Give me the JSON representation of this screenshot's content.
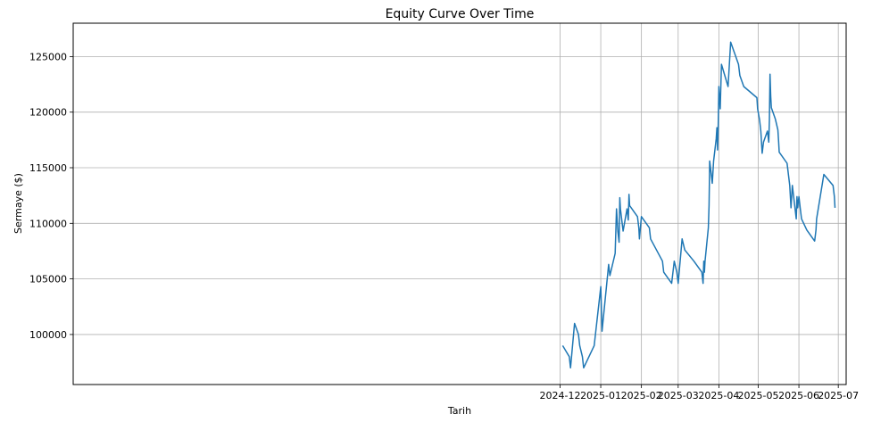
{
  "chart_data": {
    "type": "line",
    "title": "Equity Curve Over Time",
    "xlabel": "Tarih",
    "ylabel": "Sermaye ($)",
    "grid": true,
    "line_color": "#1f77b4",
    "xlim": [
      "2023-11-26",
      "2025-07-07"
    ],
    "ylim": [
      95500,
      128000
    ],
    "x_ticks": [
      {
        "date": "2024-12-01",
        "label": "2024-12"
      },
      {
        "date": "2025-01-01",
        "label": "2025-01"
      },
      {
        "date": "2025-02-01",
        "label": "2025-02"
      },
      {
        "date": "2025-03-01",
        "label": "2025-03"
      },
      {
        "date": "2025-04-01",
        "label": "2025-04"
      },
      {
        "date": "2025-05-01",
        "label": "2025-05"
      },
      {
        "date": "2025-06-01",
        "label": "2025-06"
      },
      {
        "date": "2025-07-01",
        "label": "2025-07"
      }
    ],
    "y_ticks": [
      {
        "value": 100000,
        "label": "100000"
      },
      {
        "value": 105000,
        "label": "105000"
      },
      {
        "value": 110000,
        "label": "110000"
      },
      {
        "value": 115000,
        "label": "115000"
      },
      {
        "value": 120000,
        "label": "120000"
      },
      {
        "value": 125000,
        "label": "125000"
      }
    ],
    "series": [
      {
        "x": [
          "2024-12-03",
          "2024-12-08",
          "2024-12-09",
          "2024-12-12",
          "2024-12-15",
          "2024-12-16",
          "2024-12-18",
          "2024-12-19",
          "2024-12-27",
          "2025-01-01",
          "2025-01-02",
          "2025-01-07",
          "2025-01-08",
          "2025-01-12",
          "2025-01-13",
          "2025-01-14",
          "2025-01-15",
          "2025-01-15T12:00",
          "2025-01-16",
          "2025-01-17",
          "2025-01-18",
          "2025-01-21",
          "2025-01-22",
          "2025-01-22T12:00",
          "2025-01-23",
          "2025-01-29",
          "2025-01-30",
          "2025-01-30T12:00",
          "2025-02-01",
          "2025-02-07",
          "2025-02-08",
          "2025-02-17",
          "2025-02-18",
          "2025-02-24",
          "2025-02-26",
          "2025-02-28",
          "2025-03-01",
          "2025-03-04",
          "2025-03-06",
          "2025-03-13",
          "2025-03-19",
          "2025-03-20",
          "2025-03-20T12:00",
          "2025-03-21",
          "2025-03-21T12:00",
          "2025-03-24",
          "2025-03-24T12:00",
          "2025-03-25",
          "2025-03-26",
          "2025-03-27",
          "2025-03-28",
          "2025-03-30",
          "2025-03-30T12:00",
          "2025-03-31",
          "2025-03-31T12:00",
          "2025-04-01",
          "2025-04-01T12:00",
          "2025-04-02",
          "2025-04-03",
          "2025-04-08",
          "2025-04-10",
          "2025-04-13",
          "2025-04-16",
          "2025-04-17",
          "2025-04-20",
          "2025-04-30",
          "2025-04-30T12:00",
          "2025-05-02",
          "2025-05-03",
          "2025-05-04",
          "2025-05-05",
          "2025-05-08",
          "2025-05-09",
          "2025-05-09T12:00",
          "2025-05-10",
          "2025-05-10T12:00",
          "2025-05-11",
          "2025-05-14",
          "2025-05-16",
          "2025-05-16T12:00",
          "2025-05-17",
          "2025-05-23",
          "2025-05-24",
          "2025-05-25",
          "2025-05-25T12:00",
          "2025-05-26",
          "2025-05-27",
          "2025-05-30",
          "2025-05-30T12:00",
          "2025-05-31",
          "2025-06-01",
          "2025-06-02",
          "2025-06-03",
          "2025-06-07",
          "2025-06-13",
          "2025-06-14",
          "2025-06-14T12:00",
          "2025-06-20",
          "2025-06-27",
          "2025-06-28",
          "2025-06-28T12:00"
        ],
        "y": [
          99000,
          98000,
          97000,
          101000,
          100000,
          99000,
          98000,
          97000,
          99000,
          104300,
          100300,
          106300,
          105300,
          107300,
          111300,
          109300,
          108300,
          112300,
          111300,
          110300,
          109300,
          111300,
          110300,
          112600,
          111600,
          110600,
          109600,
          108600,
          110600,
          109600,
          108600,
          106600,
          105600,
          104600,
          106600,
          105600,
          104600,
          108600,
          107600,
          106600,
          105600,
          104600,
          106600,
          105600,
          106600,
          109600,
          111600,
          115600,
          114600,
          113600,
          115600,
          117600,
          118600,
          116600,
          118600,
          122300,
          121300,
          120300,
          124300,
          122300,
          126300,
          125300,
          124300,
          123300,
          122300,
          121300,
          120300,
          119300,
          118300,
          116300,
          117300,
          118300,
          117300,
          119300,
          123400,
          121400,
          120400,
          119400,
          118400,
          117400,
          116400,
          115400,
          114400,
          113400,
          112400,
          111400,
          113400,
          110400,
          112400,
          111400,
          112400,
          111400,
          110400,
          109400,
          108400,
          109400,
          110400,
          114400,
          113400,
          112400,
          111400
        ]
      }
    ]
  }
}
